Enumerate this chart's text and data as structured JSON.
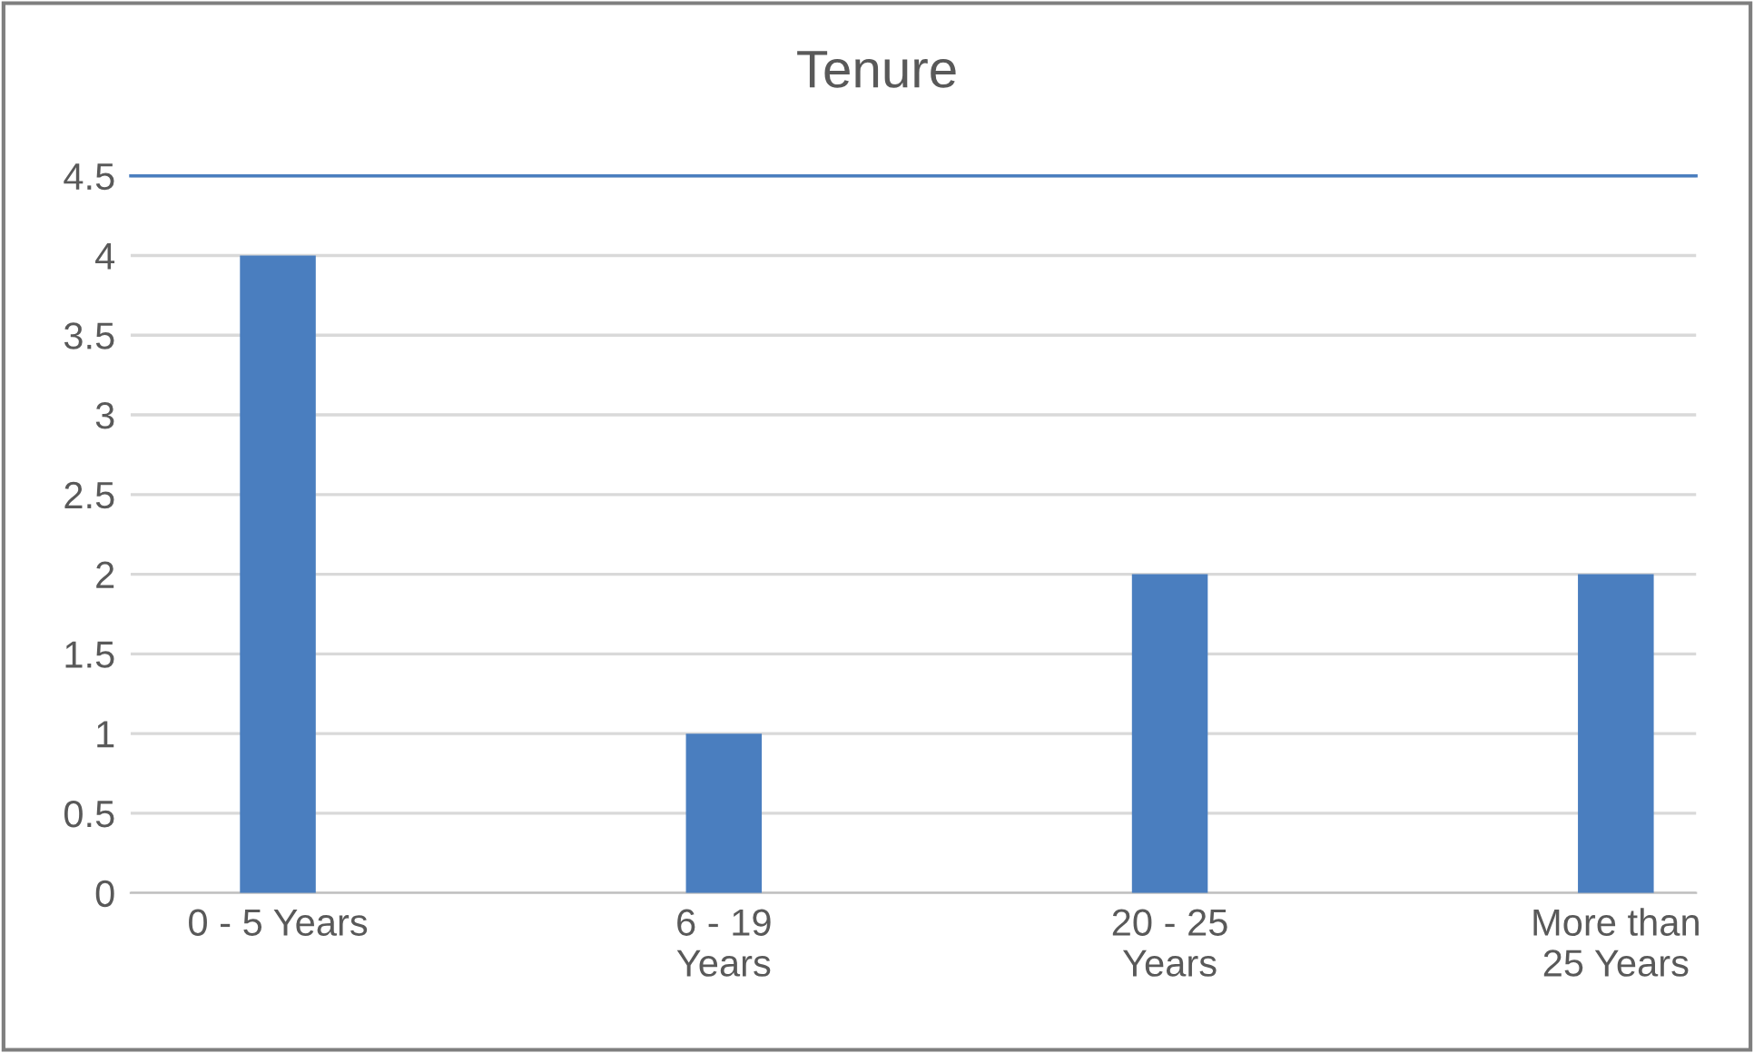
{
  "chart_data": {
    "type": "bar",
    "title": "Tenure",
    "categories": [
      "0 - 5 Years",
      "6 - 19\nYears",
      "20 - 25\nYears",
      "More than\n25 Years"
    ],
    "values": [
      4,
      1,
      2,
      2
    ],
    "color": "#4a7ebf",
    "ylim": [
      0,
      4.5
    ],
    "yticks": [
      0,
      0.5,
      1,
      1.5,
      2,
      2.5,
      3,
      3.5,
      4,
      4.5
    ],
    "grid": "y"
  }
}
